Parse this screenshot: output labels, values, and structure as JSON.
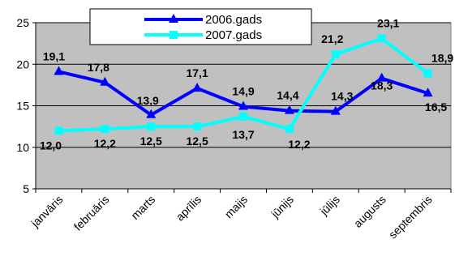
{
  "chart_data": {
    "type": "line",
    "categories": [
      "janvāris",
      "februāris",
      "marts",
      "aprīlis",
      "maijs",
      "jūnijs",
      "jūlijs",
      "augusts",
      "septembris"
    ],
    "series": [
      {
        "name": "2006.gads",
        "values": [
          19.1,
          17.8,
          13.9,
          17.1,
          14.9,
          14.4,
          14.3,
          18.3,
          16.5
        ],
        "labels": [
          "19,1",
          "17,8",
          "13,9",
          "17,1",
          "14,9",
          "14,4",
          "14,3",
          "18,3",
          "16,5"
        ],
        "color": "#0000ff",
        "marker": "triangle"
      },
      {
        "name": "2007.gads",
        "values": [
          12.0,
          12.2,
          12.5,
          12.5,
          13.7,
          12.2,
          21.2,
          23.1,
          18.9
        ],
        "labels": [
          "12,0",
          "12,2",
          "12,5",
          "12,5",
          "13,7",
          "12,2",
          "21,2",
          "23,1",
          "18,9"
        ],
        "color": "#00ffff",
        "marker": "square"
      }
    ],
    "yticks": [
      5,
      10,
      15,
      20,
      25
    ],
    "ylim": [
      5,
      25
    ],
    "grid": true,
    "plot_background": "#c0c0c0",
    "legend": "top-left"
  }
}
